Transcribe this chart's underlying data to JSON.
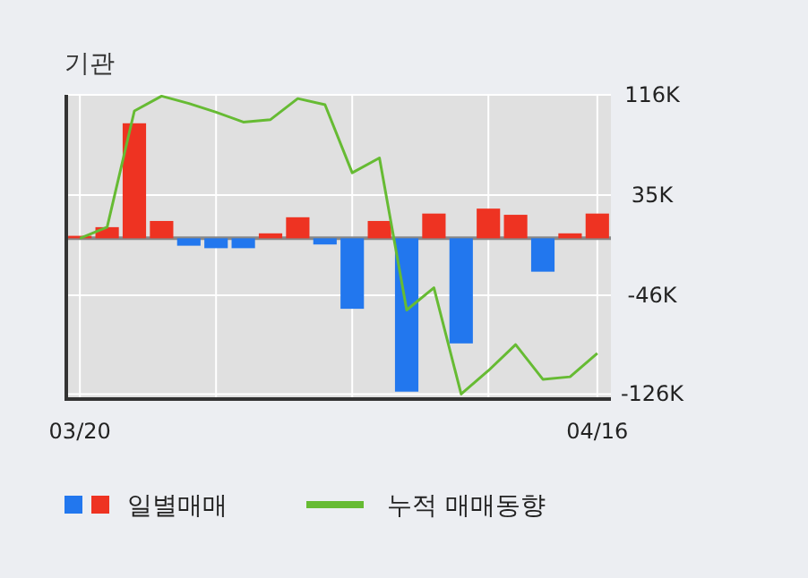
{
  "chart_data": {
    "type": "bar",
    "title": "기관",
    "categories": [
      "03/20",
      null,
      null,
      null,
      null,
      null,
      null,
      null,
      null,
      null,
      null,
      null,
      null,
      null,
      null,
      null,
      null,
      null,
      null,
      "04/16"
    ],
    "series": [
      {
        "name": "일별매매",
        "colors": [
          "#ee3322",
          "#ee3322",
          "#ee3322",
          "#ee3322",
          "#2277ee",
          "#2277ee",
          "#2277ee",
          "#ee3322",
          "#ee3322",
          "#2277ee",
          "#2277ee",
          "#ee3322",
          "#2277ee",
          "#ee3322",
          "#2277ee",
          "#ee3322",
          "#ee3322",
          "#2277ee",
          "#ee3322",
          "#ee3322"
        ],
        "values": [
          2000,
          9000,
          93000,
          14000,
          -6000,
          -8000,
          -8000,
          4000,
          17000,
          -5000,
          -57000,
          14000,
          -124000,
          20000,
          -85000,
          24000,
          19000,
          -27000,
          4000,
          20000
        ]
      },
      {
        "name": "누적 매매동향",
        "type": "line",
        "color": "#66bb33",
        "values": [
          0,
          9000,
          103000,
          115000,
          109000,
          102000,
          94000,
          96000,
          113000,
          108000,
          53000,
          65000,
          -58000,
          -40000,
          -126000,
          -107000,
          -86000,
          -114000,
          -112000,
          -93000
        ]
      }
    ],
    "ylim": [
      -130000,
      116000
    ],
    "yticks": [
      {
        "value": 116000,
        "label": "116K"
      },
      {
        "value": 35000,
        "label": "35K"
      },
      {
        "value": -46000,
        "label": "-46K"
      },
      {
        "value": -126000,
        "label": "-126K"
      }
    ],
    "ref_lines": [
      {
        "axis": "y",
        "value": 0,
        "color": "#888888"
      }
    ],
    "grid": true,
    "legend": "bottom"
  }
}
